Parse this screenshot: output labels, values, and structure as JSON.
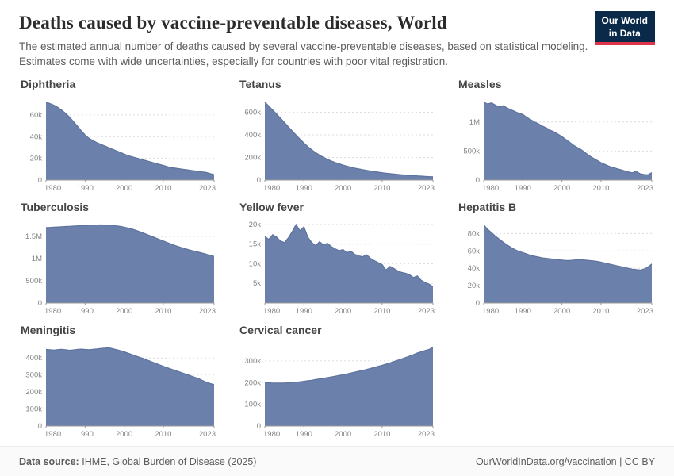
{
  "style": {
    "area": "#6b80aa",
    "line": "#5d739e",
    "logo_bg": "#0b2948",
    "logo_accent": "#e0344a"
  },
  "header": {
    "title": "Deaths caused by vaccine-preventable diseases, World",
    "subtitle": "The estimated annual number of deaths caused by several vaccine-preventable diseases, based on statistical modeling. Estimates come with wide uncertainties, especially for countries with poor vital registration.",
    "logo_line1": "Our World",
    "logo_line2": "in Data"
  },
  "footer": {
    "source_label": "Data source:",
    "source_value": "IHME, Global Burden of Disease (2025)",
    "right_text": "OurWorldInData.org/vaccination | CC BY"
  },
  "chart_data": [
    {
      "type": "area",
      "title": "Diphtheria",
      "x_start": 1980,
      "x_end": 2023,
      "xticks": [
        1980,
        1990,
        2000,
        2010,
        2023
      ],
      "yticks": [
        {
          "v": 0,
          "l": "0"
        },
        {
          "v": 20000,
          "l": "20k"
        },
        {
          "v": 40000,
          "l": "40k"
        },
        {
          "v": 60000,
          "l": "60k"
        }
      ],
      "ymax": 76000,
      "values": [
        72000,
        70500,
        69000,
        67000,
        64500,
        61500,
        58000,
        54000,
        50000,
        45500,
        41500,
        38500,
        36500,
        34500,
        33000,
        31500,
        30000,
        28500,
        27000,
        25500,
        24000,
        22500,
        21500,
        20500,
        19500,
        18500,
        17500,
        16500,
        15500,
        14500,
        13500,
        12500,
        11500,
        11000,
        10500,
        10000,
        9500,
        9000,
        8500,
        8000,
        7500,
        7000,
        6000,
        5000
      ]
    },
    {
      "type": "area",
      "title": "Tetanus",
      "x_start": 1980,
      "x_end": 2023,
      "xticks": [
        1980,
        1990,
        2000,
        2010,
        2023
      ],
      "yticks": [
        {
          "v": 0,
          "l": "0"
        },
        {
          "v": 200000,
          "l": "200k"
        },
        {
          "v": 400000,
          "l": "400k"
        },
        {
          "v": 600000,
          "l": "600k"
        }
      ],
      "ymax": 730000,
      "values": [
        690000,
        655000,
        620000,
        585000,
        548000,
        510000,
        472000,
        435000,
        398000,
        362000,
        328000,
        296000,
        268000,
        243000,
        221000,
        201000,
        184000,
        169000,
        156000,
        144000,
        133000,
        123000,
        114000,
        106000,
        99000,
        92000,
        86000,
        80000,
        75000,
        70000,
        65000,
        61000,
        57000,
        53000,
        50000,
        47000,
        44000,
        41000,
        39000,
        37000,
        35000,
        33000,
        31000,
        30000
      ]
    },
    {
      "type": "area",
      "title": "Measles",
      "x_start": 1980,
      "x_end": 2023,
      "xticks": [
        1980,
        1990,
        2000,
        2010,
        2023
      ],
      "yticks": [
        {
          "v": 0,
          "l": "0"
        },
        {
          "v": 500000,
          "l": "500k"
        },
        {
          "v": 1000000,
          "l": "1M"
        }
      ],
      "ymax": 1420000,
      "values": [
        1340000,
        1310000,
        1330000,
        1290000,
        1260000,
        1280000,
        1240000,
        1210000,
        1180000,
        1150000,
        1130000,
        1080000,
        1040000,
        1000000,
        970000,
        930000,
        900000,
        860000,
        830000,
        790000,
        750000,
        700000,
        650000,
        600000,
        560000,
        520000,
        470000,
        420000,
        380000,
        340000,
        300000,
        270000,
        240000,
        220000,
        200000,
        180000,
        160000,
        140000,
        125000,
        150000,
        110000,
        95000,
        90000,
        130000
      ]
    },
    {
      "type": "area",
      "title": "Tuberculosis",
      "x_start": 1980,
      "x_end": 2023,
      "xticks": [
        1980,
        1990,
        2000,
        2010,
        2023
      ],
      "yticks": [
        {
          "v": 0,
          "l": "0"
        },
        {
          "v": 500000,
          "l": "500k"
        },
        {
          "v": 1000000,
          "l": "1M"
        },
        {
          "v": 1500000,
          "l": "1.5M"
        }
      ],
      "ymax": 1860000,
      "values": [
        1700000,
        1705000,
        1710000,
        1715000,
        1720000,
        1725000,
        1730000,
        1735000,
        1740000,
        1745000,
        1750000,
        1755000,
        1758000,
        1760000,
        1762000,
        1760000,
        1755000,
        1748000,
        1740000,
        1728000,
        1712000,
        1692000,
        1668000,
        1640000,
        1608000,
        1575000,
        1540000,
        1505000,
        1470000,
        1435000,
        1400000,
        1365000,
        1330000,
        1298000,
        1268000,
        1240000,
        1214000,
        1190000,
        1168000,
        1148000,
        1125000,
        1100000,
        1075000,
        1050000
      ]
    },
    {
      "type": "area",
      "title": "Yellow fever",
      "x_start": 1980,
      "x_end": 2023,
      "xticks": [
        1980,
        1990,
        2000,
        2010,
        2023
      ],
      "yticks": [
        {
          "v": 5000,
          "l": "5k"
        },
        {
          "v": 10000,
          "l": "10k"
        },
        {
          "v": 15000,
          "l": "15k"
        },
        {
          "v": 20000,
          "l": "20k"
        }
      ],
      "ymax": 21000,
      "values": [
        17000,
        16200,
        17400,
        16800,
        15800,
        15400,
        16600,
        18200,
        20000,
        18400,
        19400,
        16800,
        15400,
        14600,
        15600,
        14800,
        15200,
        14400,
        13800,
        13300,
        13600,
        12800,
        13200,
        12400,
        12000,
        11800,
        12300,
        11400,
        10800,
        10300,
        9800,
        8400,
        9300,
        8800,
        8200,
        7800,
        7600,
        7200,
        6500,
        6900,
        5800,
        5200,
        4800,
        4200
      ]
    },
    {
      "type": "area",
      "title": "Hepatitis B",
      "x_start": 1980,
      "x_end": 2023,
      "xticks": [
        1980,
        1990,
        2000,
        2010,
        2023
      ],
      "yticks": [
        {
          "v": 0,
          "l": "0"
        },
        {
          "v": 20000,
          "l": "20k"
        },
        {
          "v": 40000,
          "l": "40k"
        },
        {
          "v": 60000,
          "l": "60k"
        },
        {
          "v": 80000,
          "l": "80k"
        }
      ],
      "ymax": 95000,
      "values": [
        90000,
        85000,
        81000,
        77000,
        73500,
        70000,
        67000,
        64000,
        61500,
        59500,
        58000,
        56500,
        55000,
        54000,
        53000,
        52000,
        51500,
        51000,
        50500,
        50000,
        49500,
        49000,
        49000,
        49500,
        50000,
        50000,
        49500,
        49000,
        48500,
        48000,
        47000,
        46000,
        45000,
        44000,
        43000,
        42000,
        41000,
        40000,
        39000,
        38500,
        38000,
        39000,
        41500,
        45000
      ]
    },
    {
      "type": "area",
      "title": "Meningitis",
      "x_start": 1980,
      "x_end": 2023,
      "xticks": [
        1980,
        1990,
        2000,
        2010,
        2023
      ],
      "yticks": [
        {
          "v": 0,
          "l": "0"
        },
        {
          "v": 100000,
          "l": "100k"
        },
        {
          "v": 200000,
          "l": "200k"
        },
        {
          "v": 300000,
          "l": "300k"
        },
        {
          "v": 400000,
          "l": "400k"
        }
      ],
      "ymax": 485000,
      "values": [
        450000,
        448000,
        446000,
        449000,
        451000,
        448000,
        445000,
        447000,
        450000,
        452000,
        450000,
        448000,
        451000,
        453000,
        456000,
        458000,
        460000,
        455000,
        449000,
        443000,
        436000,
        428000,
        420000,
        412000,
        404000,
        396000,
        387000,
        378000,
        369000,
        360000,
        351000,
        343000,
        335000,
        327000,
        319000,
        311000,
        303000,
        295000,
        287000,
        279000,
        268000,
        258000,
        250000,
        244000
      ]
    },
    {
      "type": "area",
      "title": "Cervical cancer",
      "x_start": 1980,
      "x_end": 2023,
      "xticks": [
        1980,
        1990,
        2000,
        2010,
        2023
      ],
      "yticks": [
        {
          "v": 0,
          "l": "0"
        },
        {
          "v": 100000,
          "l": "100k"
        },
        {
          "v": 200000,
          "l": "200k"
        },
        {
          "v": 300000,
          "l": "300k"
        }
      ],
      "ymax": 380000,
      "values": [
        200000,
        199000,
        198000,
        198000,
        197500,
        198000,
        199000,
        200500,
        202000,
        204000,
        206000,
        208500,
        211000,
        214000,
        217000,
        220000,
        223000,
        226000,
        229500,
        233000,
        236500,
        240000,
        244000,
        248000,
        252000,
        256000,
        260500,
        265000,
        270000,
        275000,
        280000,
        285500,
        291000,
        297000,
        303000,
        309000,
        315500,
        322000,
        329000,
        336000,
        342000,
        348000,
        353000,
        362000
      ]
    }
  ]
}
